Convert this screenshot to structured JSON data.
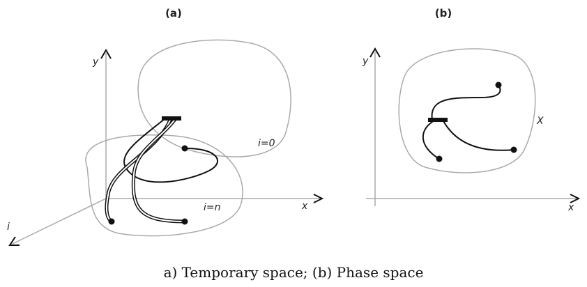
{
  "panels": [
    {
      "title": "(a)",
      "axis_labels": {
        "y": "y",
        "x": "x",
        "i": "i"
      },
      "region_labels": [
        "i=0",
        "i=n"
      ]
    },
    {
      "title": "(b)",
      "axis_labels": {
        "y": "y",
        "x": "x"
      },
      "region_labels": [
        "X"
      ]
    }
  ],
  "caption": "a) Temporary space; (b) Phase space"
}
